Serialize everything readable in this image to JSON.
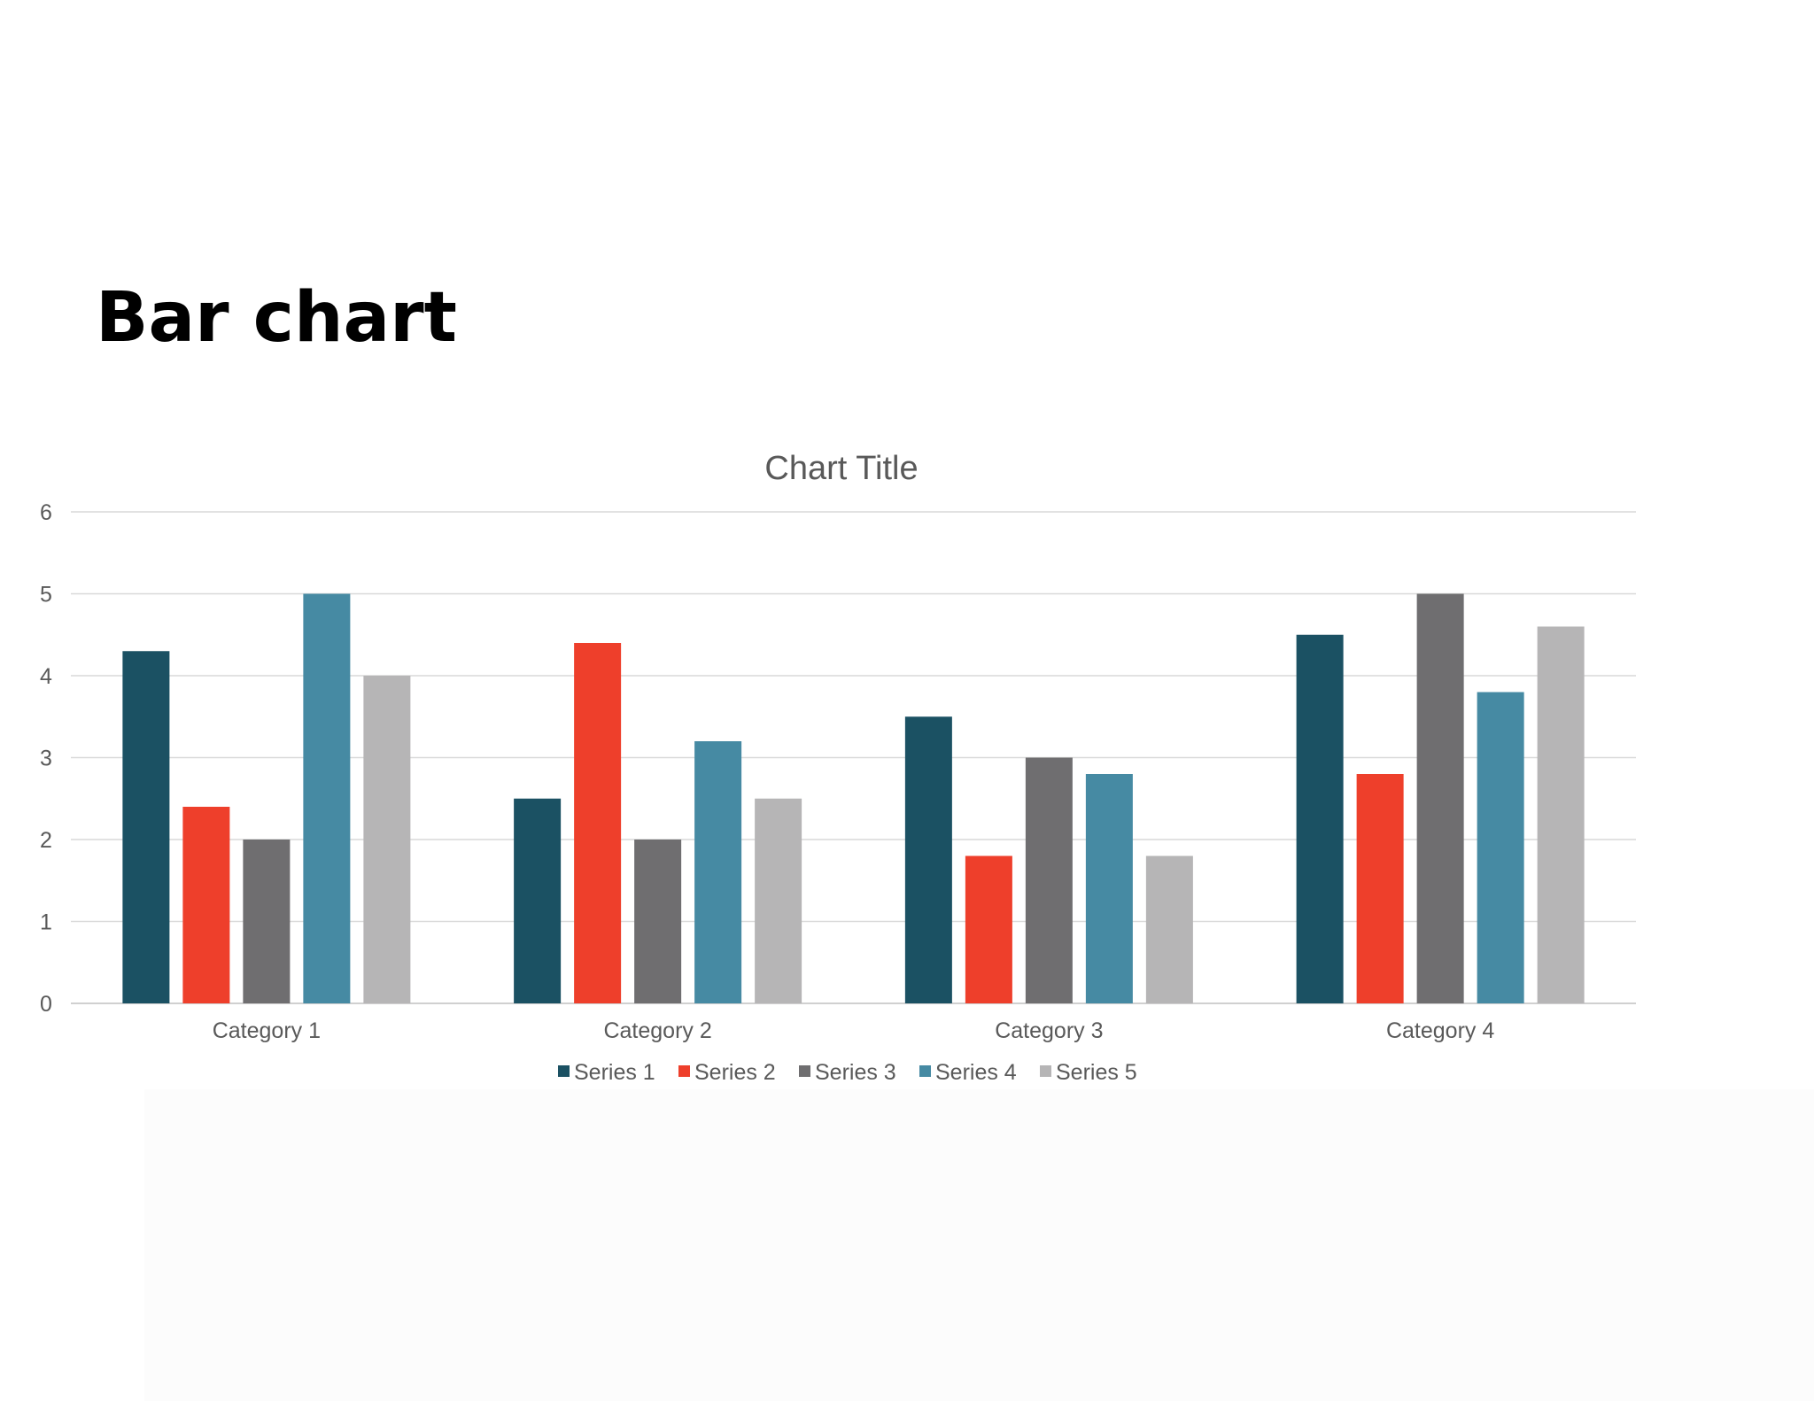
{
  "slide": {
    "title": "Bar chart"
  },
  "chart_data": {
    "type": "bar",
    "title": "Chart Title",
    "xlabel": "",
    "ylabel": "",
    "categories": [
      "Category 1",
      "Category 2",
      "Category 3",
      "Category 4"
    ],
    "series": [
      {
        "name": "Series 1",
        "color": "#1b5163",
        "values": [
          4.3,
          2.5,
          3.5,
          4.5
        ]
      },
      {
        "name": "Series 2",
        "color": "#ee3f2b",
        "values": [
          2.4,
          4.4,
          1.8,
          2.8
        ]
      },
      {
        "name": "Series 3",
        "color": "#6f6e70",
        "values": [
          2.0,
          2.0,
          3.0,
          5.0
        ]
      },
      {
        "name": "Series 4",
        "color": "#468aa3",
        "values": [
          5.0,
          3.2,
          2.8,
          3.8
        ]
      },
      {
        "name": "Series 5",
        "color": "#b6b5b6",
        "values": [
          4.0,
          2.5,
          1.8,
          4.6
        ]
      }
    ],
    "ylim": [
      0,
      6
    ],
    "yticks": [
      "0",
      "1",
      "2",
      "3",
      "4",
      "5",
      "6"
    ],
    "grid": true,
    "legend": "bottom"
  }
}
